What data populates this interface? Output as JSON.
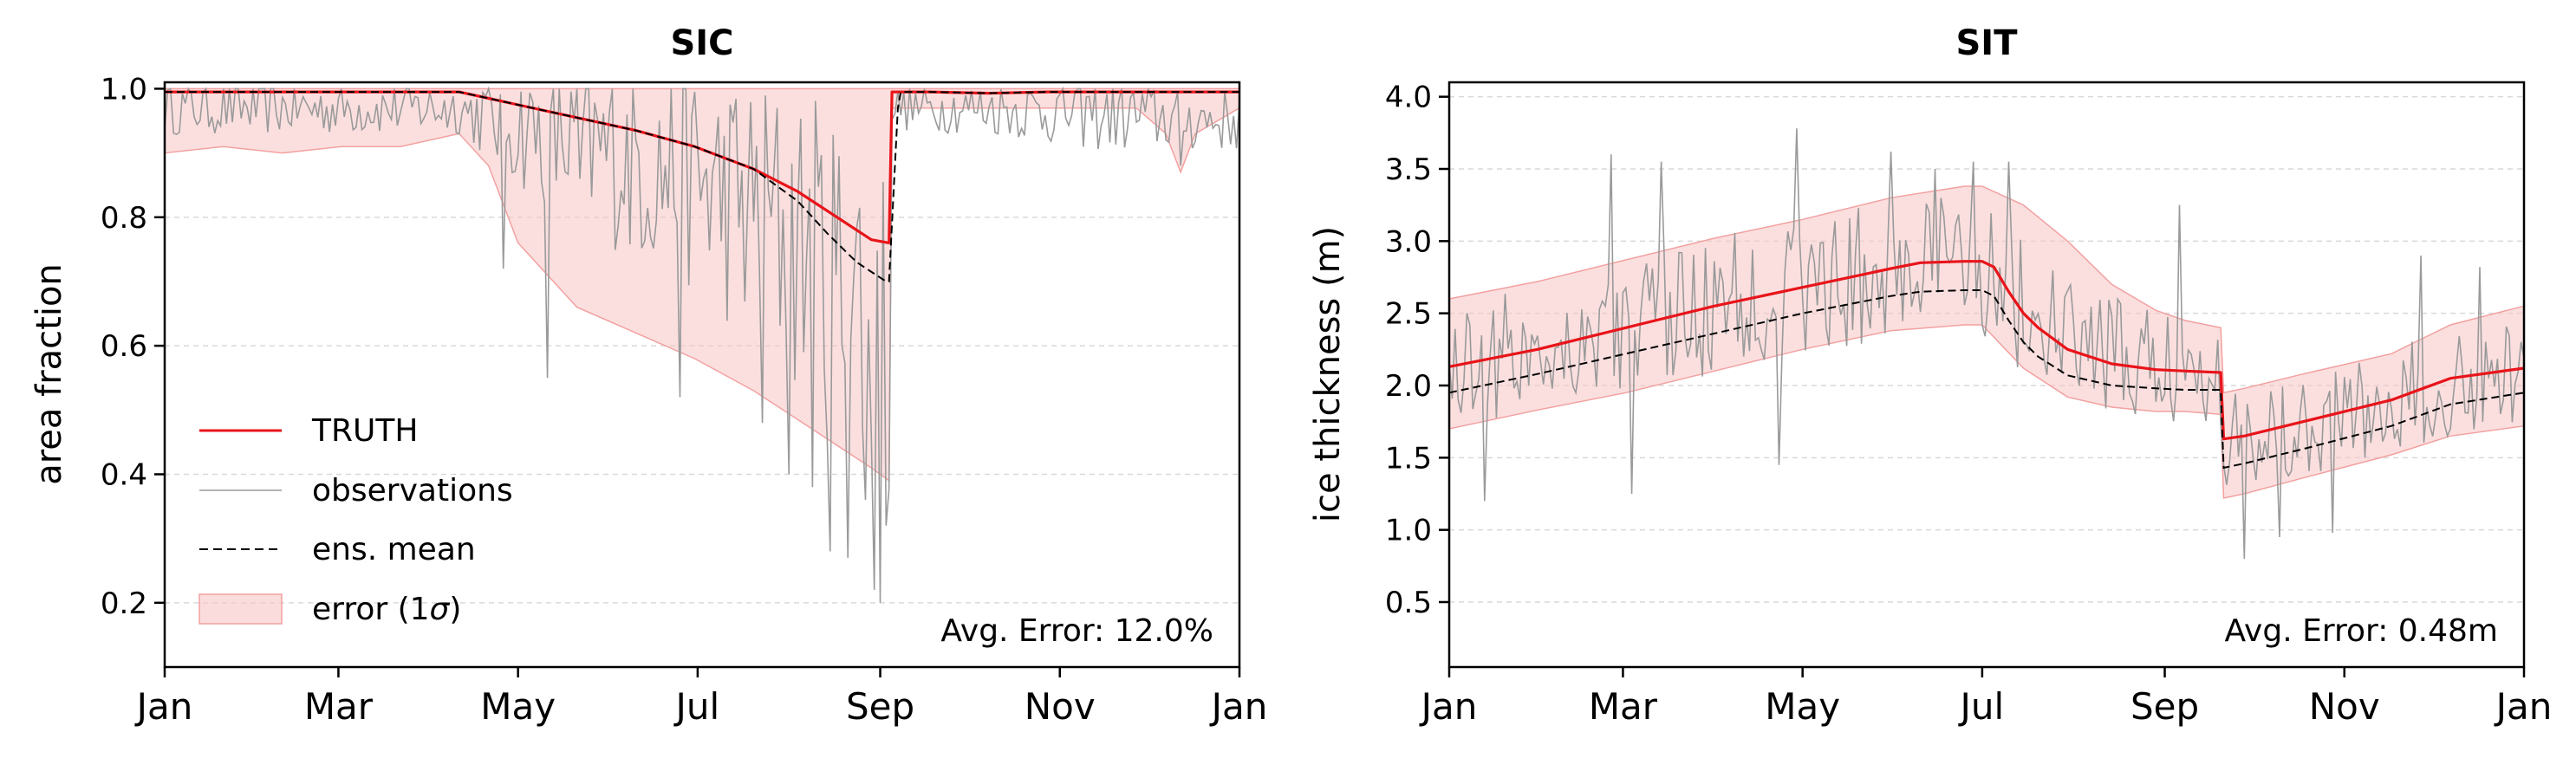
{
  "figure": {
    "colors": {
      "truth": "#e8141a",
      "observations": "#9a9a9a",
      "mean": "#000000",
      "error_fill": "#f8c4c4",
      "error_edge": "#f3a0a0",
      "grid": "#d9d9d9"
    }
  },
  "chart_data": [
    {
      "type": "line",
      "title": "SIC",
      "xlabel": "",
      "ylabel": "area fraction",
      "xlim": [
        0,
        365
      ],
      "ylim": [
        0.1,
        1.01
      ],
      "x_ticks": [
        0,
        59,
        120,
        181,
        243,
        304,
        365
      ],
      "x_tick_labels": [
        "Jan",
        "Mar",
        "May",
        "Jul",
        "Sep",
        "Nov",
        "Jan"
      ],
      "y_ticks": [
        0.2,
        0.4,
        0.6,
        0.8,
        1.0
      ],
      "y_tick_labels": [
        "0.2",
        "0.4",
        "0.6",
        "0.8",
        "1.0"
      ],
      "grid": "horizontal dashed",
      "legend": {
        "placement": "lower-left",
        "entries": [
          "TRUTH",
          "observations",
          "ens. mean",
          "error (1σ)"
        ]
      },
      "annotation": "Avg. Error: 12.0%",
      "series": [
        {
          "name": "TRUTH",
          "style": "solid red",
          "x": [
            0,
            100,
            110,
            120,
            140,
            160,
            180,
            200,
            215,
            230,
            240,
            246,
            247,
            250,
            260,
            280,
            300,
            320,
            340,
            365
          ],
          "values": [
            0.995,
            0.995,
            0.985,
            0.975,
            0.955,
            0.935,
            0.91,
            0.875,
            0.84,
            0.795,
            0.765,
            0.76,
            0.995,
            0.995,
            0.995,
            0.993,
            0.995,
            0.995,
            0.995,
            0.995
          ]
        },
        {
          "name": "ens. mean",
          "style": "dashed black",
          "x": [
            0,
            100,
            110,
            120,
            140,
            160,
            180,
            200,
            215,
            225,
            235,
            245,
            246,
            249,
            250,
            260,
            280,
            300,
            320,
            340,
            365
          ],
          "values": [
            0.995,
            0.995,
            0.985,
            0.975,
            0.955,
            0.935,
            0.91,
            0.875,
            0.825,
            0.775,
            0.73,
            0.7,
            0.7,
            0.97,
            0.995,
            0.995,
            0.993,
            0.995,
            0.995,
            0.995,
            0.995
          ]
        },
        {
          "name": "error (1σ)",
          "style": "band",
          "x": [
            0,
            20,
            40,
            60,
            80,
            100,
            110,
            120,
            140,
            160,
            180,
            200,
            220,
            240,
            246,
            247,
            260,
            300,
            330,
            340,
            345,
            350,
            365
          ],
          "upper": [
            1.0,
            1.0,
            1.0,
            1.0,
            1.0,
            1.0,
            1.0,
            1.0,
            1.0,
            1.0,
            1.0,
            1.0,
            1.0,
            1.0,
            1.0,
            1.0,
            1.0,
            1.0,
            1.0,
            1.0,
            1.0,
            1.0,
            1.0
          ],
          "lower": [
            0.9,
            0.91,
            0.9,
            0.91,
            0.91,
            0.93,
            0.88,
            0.76,
            0.66,
            0.62,
            0.58,
            0.53,
            0.47,
            0.41,
            0.39,
            0.97,
            0.97,
            0.97,
            0.97,
            0.93,
            0.87,
            0.93,
            0.97
          ]
        },
        {
          "name": "observations",
          "style": "thin gray noisy",
          "profile_x": [
            0,
            100,
            120,
            150,
            180,
            210,
            235,
            246,
            247,
            280,
            320,
            365
          ],
          "profile_mean": [
            0.97,
            0.97,
            0.94,
            0.9,
            0.86,
            0.78,
            0.68,
            0.62,
            0.97,
            0.97,
            0.96,
            0.95
          ],
          "profile_spread": [
            0.035,
            0.035,
            0.08,
            0.12,
            0.15,
            0.2,
            0.24,
            0.25,
            0.03,
            0.035,
            0.05,
            0.04
          ],
          "extremes": [
            [
              130,
              0.55
            ],
            [
              141,
              0.86
            ],
            [
              175,
              0.52
            ],
            [
              203,
              0.48
            ],
            [
              212,
              0.4
            ],
            [
              220,
              0.38
            ],
            [
              226,
              0.28
            ],
            [
              232,
              0.27
            ],
            [
              238,
              0.36
            ],
            [
              241,
              0.22
            ],
            [
              243,
              0.2
            ],
            [
              245,
              0.32
            ],
            [
              115,
              0.72
            ],
            [
              345,
              0.88
            ]
          ],
          "ymin": 0.18,
          "ymax": 1.0
        }
      ]
    },
    {
      "type": "line",
      "title": "SIT",
      "xlabel": "",
      "ylabel": "ice thickness (m)",
      "xlim": [
        0,
        365
      ],
      "ylim": [
        0.05,
        4.1
      ],
      "x_ticks": [
        0,
        59,
        120,
        181,
        243,
        304,
        365
      ],
      "x_tick_labels": [
        "Jan",
        "Mar",
        "May",
        "Jul",
        "Sep",
        "Nov",
        "Jan"
      ],
      "y_ticks": [
        0.5,
        1.0,
        1.5,
        2.0,
        2.5,
        3.0,
        3.5,
        4.0
      ],
      "y_tick_labels": [
        "0.5",
        "1.0",
        "1.5",
        "2.0",
        "2.5",
        "3.0",
        "3.5",
        "4.0"
      ],
      "grid": "horizontal dashed",
      "annotation": "Avg. Error: 0.48m",
      "series": [
        {
          "name": "TRUTH",
          "style": "solid red",
          "x": [
            0,
            30,
            60,
            90,
            120,
            150,
            160,
            175,
            181,
            185,
            190,
            195,
            200,
            210,
            225,
            240,
            250,
            262,
            263,
            270,
            290,
            320,
            340,
            365
          ],
          "values": [
            2.13,
            2.25,
            2.4,
            2.55,
            2.68,
            2.81,
            2.85,
            2.86,
            2.86,
            2.82,
            2.65,
            2.5,
            2.4,
            2.25,
            2.15,
            2.11,
            2.1,
            2.09,
            1.63,
            1.65,
            1.75,
            1.9,
            2.05,
            2.12
          ]
        },
        {
          "name": "ens. mean",
          "style": "dashed black",
          "x": [
            0,
            30,
            60,
            90,
            120,
            150,
            160,
            175,
            181,
            185,
            190,
            195,
            200,
            210,
            225,
            240,
            250,
            262,
            263,
            270,
            290,
            320,
            340,
            365
          ],
          "values": [
            1.95,
            2.08,
            2.22,
            2.36,
            2.5,
            2.62,
            2.65,
            2.66,
            2.66,
            2.62,
            2.45,
            2.3,
            2.2,
            2.07,
            2.0,
            1.98,
            1.97,
            1.97,
            1.43,
            1.46,
            1.56,
            1.72,
            1.87,
            1.95
          ]
        },
        {
          "name": "error (1σ)",
          "style": "band",
          "x": [
            0,
            30,
            60,
            90,
            120,
            150,
            175,
            181,
            195,
            210,
            225,
            240,
            250,
            262,
            263,
            270,
            290,
            320,
            340,
            365
          ],
          "upper": [
            2.6,
            2.72,
            2.87,
            3.02,
            3.15,
            3.3,
            3.38,
            3.38,
            3.25,
            3.0,
            2.7,
            2.52,
            2.45,
            2.4,
            1.95,
            1.98,
            2.08,
            2.22,
            2.42,
            2.55
          ],
          "lower": [
            1.7,
            1.83,
            1.95,
            2.1,
            2.25,
            2.38,
            2.42,
            2.42,
            2.12,
            1.92,
            1.85,
            1.82,
            1.82,
            1.8,
            1.22,
            1.25,
            1.36,
            1.52,
            1.65,
            1.72
          ]
        },
        {
          "name": "observations",
          "style": "thin gray noisy",
          "profile_x": [
            0,
            60,
            120,
            180,
            200,
            230,
            262,
            263,
            300,
            365
          ],
          "profile_mean": [
            2.13,
            2.4,
            2.68,
            2.86,
            2.4,
            2.15,
            2.09,
            1.63,
            1.8,
            2.12
          ],
          "profile_spread": [
            0.35,
            0.38,
            0.42,
            0.45,
            0.4,
            0.35,
            0.3,
            0.3,
            0.32,
            0.3
          ],
          "extremes": [
            [
              12,
              1.2
            ],
            [
              55,
              3.6
            ],
            [
              62,
              1.25
            ],
            [
              72,
              3.55
            ],
            [
              118,
              3.78
            ],
            [
              112,
              1.45
            ],
            [
              150,
              3.62
            ],
            [
              165,
              3.5
            ],
            [
              178,
              3.55
            ],
            [
              190,
              3.55
            ],
            [
              248,
              3.25
            ],
            [
              270,
              0.8
            ],
            [
              282,
              0.95
            ],
            [
              300,
              0.98
            ],
            [
              330,
              2.9
            ],
            [
              350,
              2.82
            ]
          ],
          "ymin": 0.75,
          "ymax": 3.9
        }
      ]
    }
  ]
}
